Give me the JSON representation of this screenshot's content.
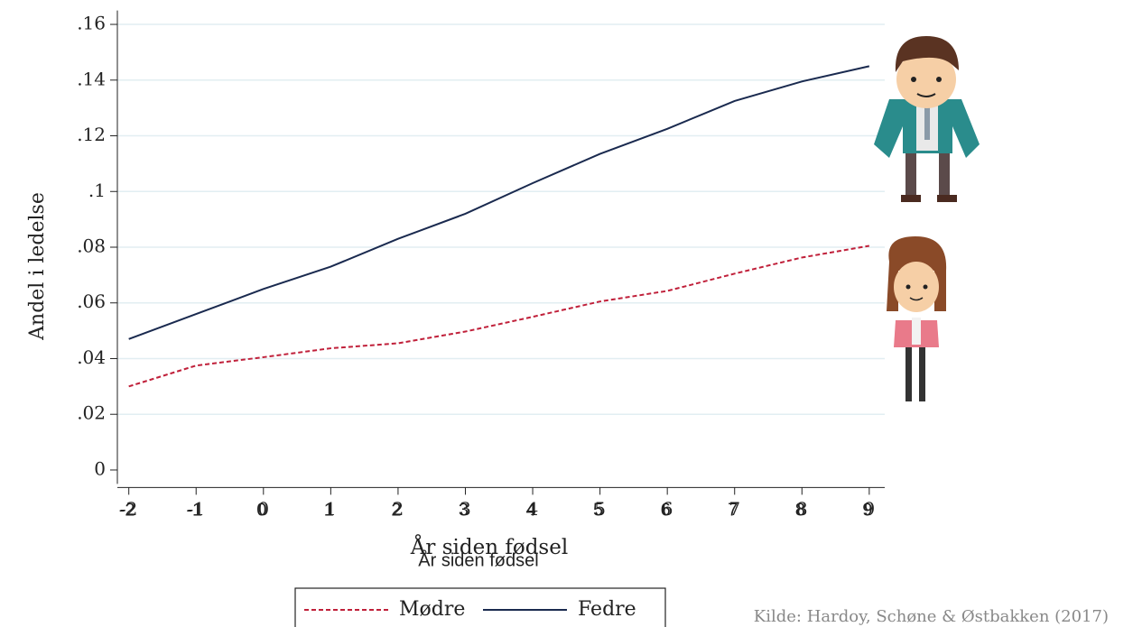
{
  "chart_data": {
    "type": "line",
    "x_label": "År siden fødsel",
    "y_label": "Andel i ledelse",
    "source": "Kilde: Hardoy, Schøne & Østbakken (2017)",
    "x": [
      -2,
      -1,
      0,
      1,
      2,
      3,
      4,
      5,
      6,
      7,
      8,
      9
    ],
    "series": [
      {
        "name": "Mødre",
        "color": "#c0203a",
        "dash": true,
        "values": [
          0.03,
          0.0375,
          0.0405,
          0.0437,
          0.0455,
          0.0497,
          0.055,
          0.0605,
          0.0643,
          0.0705,
          0.0763,
          0.0805
        ]
      },
      {
        "name": "Fedre",
        "color": "#1a2a4f",
        "dash": false,
        "values": [
          0.047,
          0.056,
          0.065,
          0.073,
          0.083,
          0.092,
          0.103,
          0.1135,
          0.1225,
          0.1325,
          0.1395,
          0.145
        ]
      }
    ],
    "xlim": [
      -2.17,
      9.23
    ],
    "xticks": [
      -2,
      -1,
      0,
      1,
      2,
      3,
      4,
      5,
      6,
      7,
      8,
      9
    ],
    "ylim": [
      -0.005,
      0.165
    ],
    "yticks": [
      0,
      {
        "value": 0.02,
        "label": ".02"
      },
      {
        "value": 0.04,
        "label": ".04"
      },
      {
        "value": 0.06,
        "label": ".06"
      },
      {
        "value": 0.08,
        "label": ".08"
      },
      {
        "value": 0.1,
        "label": ".1"
      },
      {
        "value": 0.12,
        "label": ".12"
      },
      {
        "value": 0.14,
        "label": ".14"
      },
      {
        "value": 0.16,
        "label": ".16"
      }
    ],
    "grid": true
  }
}
